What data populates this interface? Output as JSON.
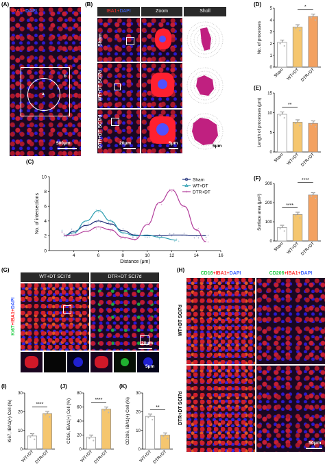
{
  "panels": {
    "A": {
      "letter": "(A)",
      "title_red": "IBA1+",
      "title_blue": "DAPI",
      "scale": "500μm",
      "circle_label": "a",
      "box_label": "b"
    },
    "B": {
      "letter": "(B)",
      "cols": [
        "IBA1+DAPI",
        "Zoom",
        "Sholl"
      ],
      "col1_red": "IBA1+",
      "col1_blue": "DAPI",
      "rows": [
        "Sham",
        "WT+DT SCI7d",
        "DTR+DT SCI7d"
      ],
      "scale1": "20μm",
      "scale2": "5μm",
      "scale3": "5μm"
    },
    "C": {
      "letter": "(C)"
    },
    "D": {
      "letter": "(D)"
    },
    "E": {
      "letter": "(E)"
    },
    "F": {
      "letter": "(F)"
    },
    "G": {
      "letter": "(G)",
      "cols": [
        "WT+DT SCI7d",
        "DTR+DT SCI7d"
      ],
      "ylabel_green": "Ki67",
      "ylabel_red": "+IBA1+",
      "ylabel_blue": "DAPI",
      "scale1": "20μm",
      "scale2": "5μm"
    },
    "H": {
      "letter": "(H)",
      "col1": {
        "green": "CD16",
        "red": "+IBA1+",
        "blue": "DAPI"
      },
      "col2": {
        "green": "CD206",
        "red": "+IBA1+",
        "blue": "DAPI"
      },
      "rows": [
        "WT+DT SCI7d",
        "DTR+DT SCI7d"
      ],
      "scale": "50μm"
    },
    "I": {
      "letter": "(I)"
    },
    "J": {
      "letter": "(J)"
    },
    "K": {
      "letter": "(K)"
    }
  },
  "chart_data": [
    {
      "id": "C",
      "type": "line",
      "xlabel": "Distance (μm)",
      "ylabel": "No. of intersections",
      "xlim": [
        2,
        16
      ],
      "ylim": [
        0,
        10
      ],
      "xticks": [
        4,
        6,
        8,
        10,
        12,
        14,
        16
      ],
      "yticks": [
        0,
        2,
        4,
        6,
        8,
        10
      ],
      "legend": [
        "Sham",
        "WT+DT",
        "DTR+DT"
      ],
      "legend_placement": "top-right",
      "series": [
        {
          "name": "Sham",
          "color": "#1f2f7a",
          "x": [
            3.2,
            4,
            5,
            6,
            7,
            8,
            9,
            10,
            11,
            12,
            13,
            14,
            14.8
          ],
          "y": [
            2,
            2.6,
            3.4,
            4.0,
            3.6,
            2.7,
            2.1,
            2.0,
            2.0,
            2.1,
            2.1,
            2.0,
            2.0
          ]
        },
        {
          "name": "WT+DT",
          "color": "#2a9db0",
          "x": [
            3.2,
            4,
            5,
            6,
            7,
            8,
            9,
            10,
            11,
            12.4
          ],
          "y": [
            2,
            2.4,
            4.0,
            5.4,
            4.0,
            2.4,
            2.0,
            2.1,
            1.8,
            1.4
          ]
        },
        {
          "name": "DTR+DT",
          "color": "#b13b9a",
          "x": [
            3.2,
            4,
            5,
            6,
            7,
            8,
            9,
            10,
            11,
            12,
            13,
            14,
            14.8
          ],
          "y": [
            2,
            2.1,
            2.6,
            3.2,
            2.8,
            1.8,
            1.5,
            3.5,
            6.5,
            8.2,
            6.0,
            2.8,
            1.2
          ]
        }
      ]
    },
    {
      "id": "D",
      "type": "bar",
      "ylabel": "No. of processes",
      "ylim": [
        0,
        5
      ],
      "yticks": [
        0,
        1,
        2,
        3,
        4,
        5
      ],
      "categories": [
        "Sham",
        "WT+DT",
        "DTR+DT"
      ],
      "values": [
        2.1,
        3.4,
        4.3
      ],
      "colors": [
        "#ffffff",
        "#f5c66f",
        "#f3a160"
      ],
      "significance": [
        {
          "from": 1,
          "to": 2,
          "label": "*"
        }
      ]
    },
    {
      "id": "E",
      "type": "bar",
      "ylabel": "Length of processes (μm)",
      "ylim": [
        0,
        15
      ],
      "yticks": [
        0,
        5,
        10,
        15
      ],
      "categories": [
        "Sham",
        "WT+DT",
        "DTR+DT"
      ],
      "values": [
        9.6,
        7.6,
        7.3
      ],
      "colors": [
        "#ffffff",
        "#f5c66f",
        "#f3a160"
      ],
      "significance": [
        {
          "from": 0,
          "to": 1,
          "label": "**"
        }
      ]
    },
    {
      "id": "F",
      "type": "bar",
      "ylabel": "Surface area (μm²)",
      "ylim": [
        0,
        300
      ],
      "yticks": [
        0,
        100,
        200,
        300
      ],
      "categories": [
        "Sham",
        "WT+DT",
        "DTR+DT"
      ],
      "values": [
        70,
        138,
        240
      ],
      "colors": [
        "#ffffff",
        "#f5c66f",
        "#f3a160"
      ],
      "significance": [
        {
          "from": 0,
          "to": 1,
          "label": "****"
        },
        {
          "from": 1,
          "to": 2,
          "label": "****"
        }
      ]
    },
    {
      "id": "I",
      "type": "bar",
      "ylabel": "Ki67, IBA1(+) Cell (%)",
      "ylim": [
        0,
        30
      ],
      "yticks": [
        0,
        10,
        20,
        30
      ],
      "categories": [
        "WT+DT",
        "DTR+DT"
      ],
      "values": [
        7,
        19
      ],
      "colors": [
        "#ffffff",
        "#f5c66f"
      ],
      "significance": [
        {
          "from": 0,
          "to": 1,
          "label": "****"
        }
      ]
    },
    {
      "id": "J",
      "type": "bar",
      "ylabel": "CD16, IBA1(+) Cell (%)",
      "ylim": [
        0,
        80
      ],
      "yticks": [
        0,
        20,
        40,
        60,
        80
      ],
      "categories": [
        "WT+DT",
        "DTR+DT"
      ],
      "values": [
        17,
        57
      ],
      "colors": [
        "#ffffff",
        "#f5c66f"
      ],
      "significance": [
        {
          "from": 0,
          "to": 1,
          "label": "****"
        }
      ]
    },
    {
      "id": "K",
      "type": "bar",
      "ylabel": "CD206, IBA1(+) Cell (%)",
      "ylim": [
        0,
        30
      ],
      "yticks": [
        0,
        10,
        20,
        30
      ],
      "categories": [
        "WT+DT",
        "DTR+DT"
      ],
      "values": [
        17.5,
        7.5
      ],
      "colors": [
        "#ffffff",
        "#f5c66f"
      ],
      "significance": [
        {
          "from": 0,
          "to": 1,
          "label": "**"
        }
      ]
    }
  ]
}
